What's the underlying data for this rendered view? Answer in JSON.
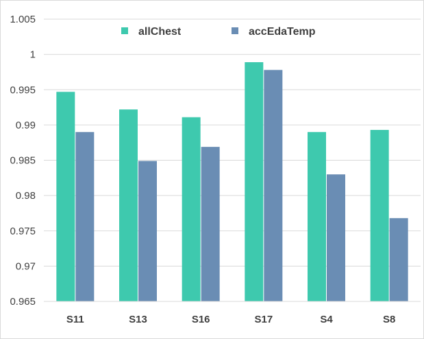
{
  "chart_data": {
    "type": "bar",
    "categories": [
      "S11",
      "S13",
      "S16",
      "S17",
      "S4",
      "S8"
    ],
    "series": [
      {
        "name": "allChest",
        "color": "#3ec9ae",
        "values": [
          0.9947,
          0.9922,
          0.9911,
          0.9989,
          0.989,
          0.9893
        ]
      },
      {
        "name": "accEdaTemp",
        "color": "#6a8db4",
        "values": [
          0.989,
          0.9849,
          0.9869,
          0.9978,
          0.983,
          0.9768
        ]
      }
    ],
    "title": "",
    "xlabel": "",
    "ylabel": "",
    "ylim": [
      0.965,
      1.005
    ],
    "yticks": [
      "0.965",
      "0.97",
      "0.975",
      "0.98",
      "0.985",
      "0.99",
      "0.995",
      "1",
      "1.005"
    ],
    "grid": true,
    "legend_position": "top-center"
  }
}
